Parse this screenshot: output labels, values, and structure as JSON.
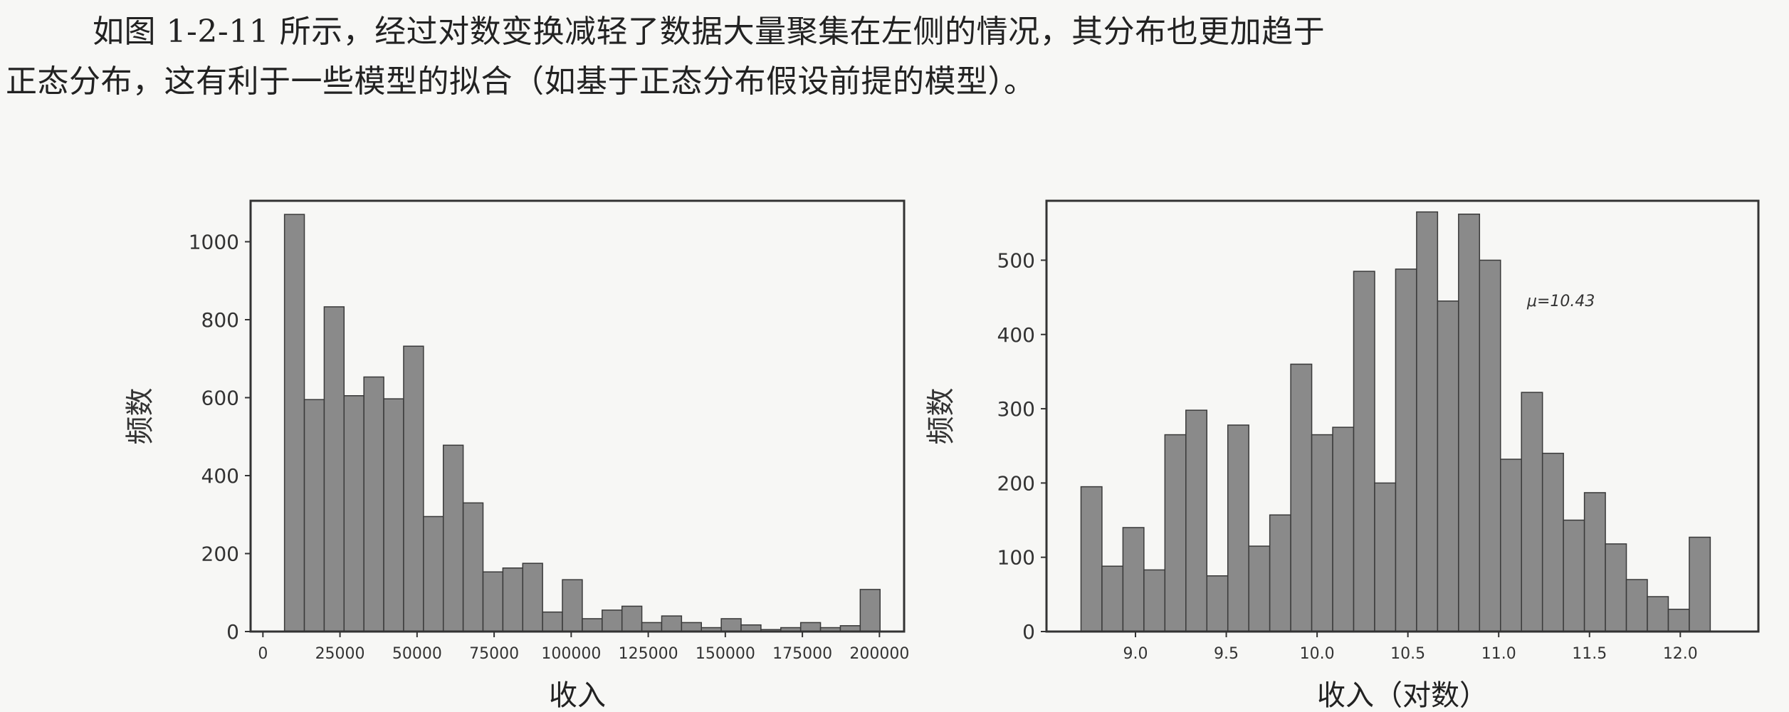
{
  "paragraph": {
    "line1": "如图 1-2-11 所示，经过对数变换减轻了数据大量聚集在左侧的情况，其分布也更加趋于",
    "line2": "正态分布，这有利于一些模型的拟合（如基于正态分布假设前提的模型）。"
  },
  "chart_data": [
    {
      "type": "bar",
      "title": "",
      "xlabel": "收入",
      "ylabel": "频数",
      "xlim": [
        -4000,
        208000
      ],
      "ylim": [
        0,
        1105
      ],
      "xticks": [
        0,
        25000,
        50000,
        75000,
        100000,
        125000,
        150000,
        175000,
        200000
      ],
      "xtick_labels": [
        "0",
        "25000",
        "50000",
        "75000",
        "100000",
        "125000",
        "150000",
        "175000",
        "200000"
      ],
      "yticks": [
        0,
        200,
        400,
        600,
        800,
        1000
      ],
      "ytick_labels": [
        "0",
        "200",
        "400",
        "600",
        "800",
        "1000"
      ],
      "bin_start": 7000,
      "bin_width": 6440,
      "values": [
        1070,
        595,
        833,
        605,
        653,
        597,
        732,
        295,
        478,
        330,
        153,
        163,
        175,
        50,
        133,
        33,
        55,
        65,
        23,
        40,
        23,
        10,
        33,
        17,
        5,
        10,
        23,
        10,
        15,
        108
      ]
    },
    {
      "type": "bar",
      "title": "",
      "xlabel": "收入（对数）",
      "ylabel": "频数",
      "annotation": "μ=10.43",
      "xlim": [
        8.51,
        12.43
      ],
      "ylim": [
        0,
        580
      ],
      "xticks": [
        9.0,
        9.5,
        10.0,
        10.5,
        11.0,
        11.5,
        12.0
      ],
      "xtick_labels": [
        "9.0",
        "9.5",
        "10.0",
        "10.5",
        "11.0",
        "11.5",
        "12.0"
      ],
      "yticks": [
        0,
        100,
        200,
        300,
        400,
        500
      ],
      "ytick_labels": [
        "0",
        "100",
        "200",
        "300",
        "400",
        "500"
      ],
      "bin_start": 8.7,
      "bin_width": 0.1155,
      "values": [
        195,
        88,
        140,
        83,
        265,
        298,
        75,
        278,
        115,
        157,
        360,
        265,
        275,
        485,
        200,
        488,
        565,
        445,
        562,
        500,
        232,
        322,
        240,
        150,
        187,
        118,
        70,
        47,
        30,
        127
      ]
    }
  ]
}
